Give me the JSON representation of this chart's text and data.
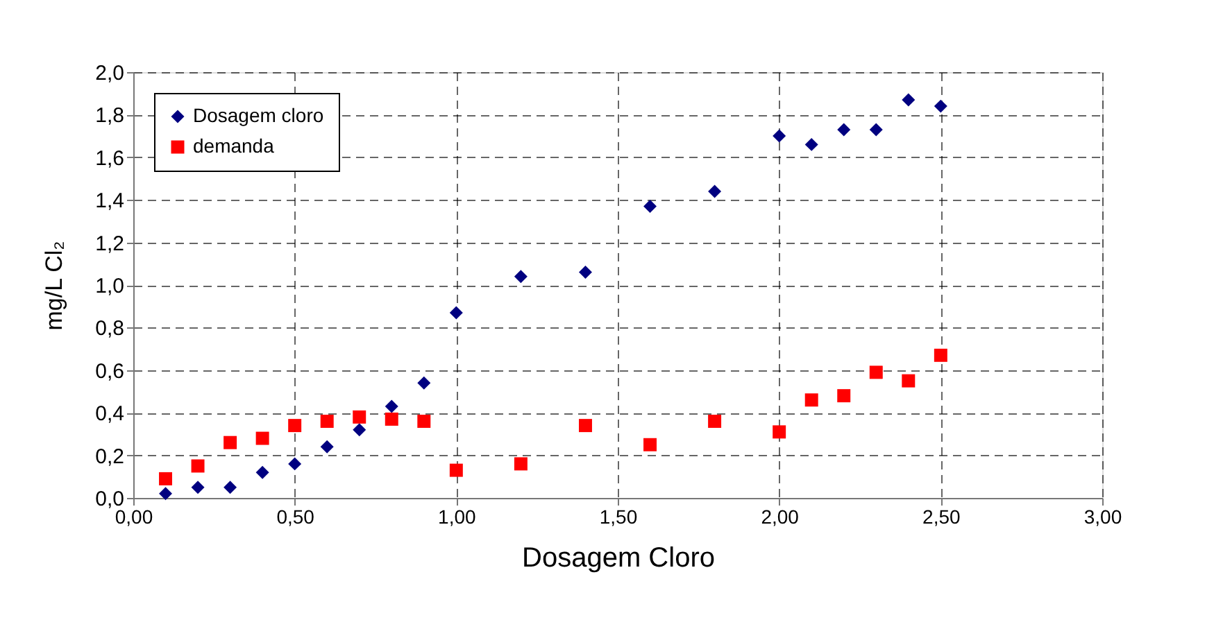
{
  "chart_data": {
    "type": "scatter",
    "xlabel": "Dosagem Cloro",
    "ylabel": "mg/L Cl₂",
    "x": [
      0.1,
      0.2,
      0.3,
      0.4,
      0.5,
      0.6,
      0.7,
      0.8,
      0.9,
      1.0,
      1.2,
      1.4,
      1.6,
      1.8,
      2.0,
      2.1,
      2.2,
      2.3,
      2.4,
      2.5
    ],
    "series": [
      {
        "name": "Dosagem cloro",
        "color": "#000080",
        "marker": "diamond",
        "values": [
          0.02,
          0.05,
          0.05,
          0.12,
          0.16,
          0.24,
          0.32,
          0.43,
          0.54,
          0.87,
          1.04,
          1.06,
          1.37,
          1.44,
          1.7,
          1.66,
          1.73,
          1.73,
          1.87,
          1.84
        ]
      },
      {
        "name": "demanda",
        "color": "#ff0000",
        "marker": "square",
        "values": [
          0.09,
          0.15,
          0.26,
          0.28,
          0.34,
          0.36,
          0.38,
          0.37,
          0.36,
          0.13,
          0.16,
          0.34,
          0.25,
          0.36,
          0.31,
          0.46,
          0.48,
          0.59,
          0.55,
          0.67
        ]
      }
    ],
    "xlim": [
      0,
      3
    ],
    "xticks": [
      {
        "value": 0,
        "label": "0,00"
      },
      {
        "value": 0.5,
        "label": "0,50"
      },
      {
        "value": 1,
        "label": "1,00"
      },
      {
        "value": 1.5,
        "label": "1,50"
      },
      {
        "value": 2,
        "label": "2,00"
      },
      {
        "value": 2.5,
        "label": "2,50"
      },
      {
        "value": 3,
        "label": "3,00"
      }
    ],
    "ylim": [
      0,
      2
    ],
    "yticks": [
      {
        "value": 0,
        "label": "0,0"
      },
      {
        "value": 0.2,
        "label": "0,2"
      },
      {
        "value": 0.4,
        "label": "0,4"
      },
      {
        "value": 0.6,
        "label": "0,6"
      },
      {
        "value": 0.8,
        "label": "0,8"
      },
      {
        "value": 1.0,
        "label": "1,0"
      },
      {
        "value": 1.2,
        "label": "1,2"
      },
      {
        "value": 1.4,
        "label": "1,4"
      },
      {
        "value": 1.6,
        "label": "1,6"
      },
      {
        "value": 1.8,
        "label": "1,8"
      },
      {
        "value": 2.0,
        "label": "2,0"
      }
    ],
    "grid": true,
    "legend": "top left"
  }
}
